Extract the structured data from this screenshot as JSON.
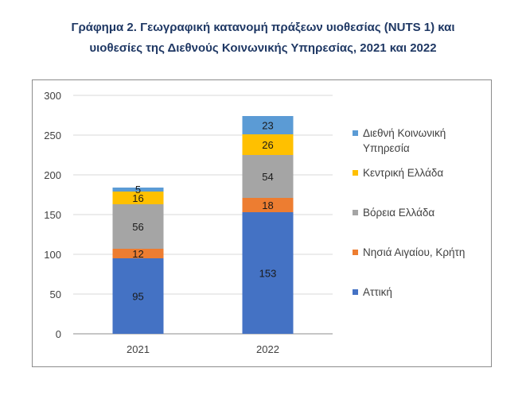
{
  "title": {
    "line1": "Γράφημα 2. Γεωγραφική κατανομή πράξεων υιοθεσίας (NUTS 1) και",
    "line2": "υιοθεσίες της Διεθνούς Κοινωνικής Υπηρεσίας, 2021 και 2022"
  },
  "chart_data": {
    "type": "bar",
    "stacked": true,
    "categories": [
      "2021",
      "2022"
    ],
    "ylim": [
      0,
      300
    ],
    "yticks": [
      0,
      50,
      100,
      150,
      200,
      250,
      300
    ],
    "grid": true,
    "legend_position": "right",
    "series": [
      {
        "name": "Αττική",
        "values": [
          95,
          153
        ],
        "color": "#4472c4"
      },
      {
        "name": "Νησιά Αιγαίου, Κρήτη",
        "values": [
          12,
          18
        ],
        "color": "#ed7d31"
      },
      {
        "name": "Βόρεια Ελλάδα",
        "values": [
          56,
          54
        ],
        "color": "#a5a5a5"
      },
      {
        "name": "Κεντρική Ελλάδα",
        "values": [
          16,
          26
        ],
        "color": "#ffc000"
      },
      {
        "name": "Διεθνή Κοινωνική Υπηρεσία",
        "values": [
          5,
          23
        ],
        "color": "#5b9bd5"
      }
    ],
    "legend_order": [
      4,
      3,
      2,
      1,
      0
    ],
    "legend_lines": {
      "4": [
        "Διεθνή Κοινωνική",
        "Υπηρεσία"
      ]
    }
  }
}
